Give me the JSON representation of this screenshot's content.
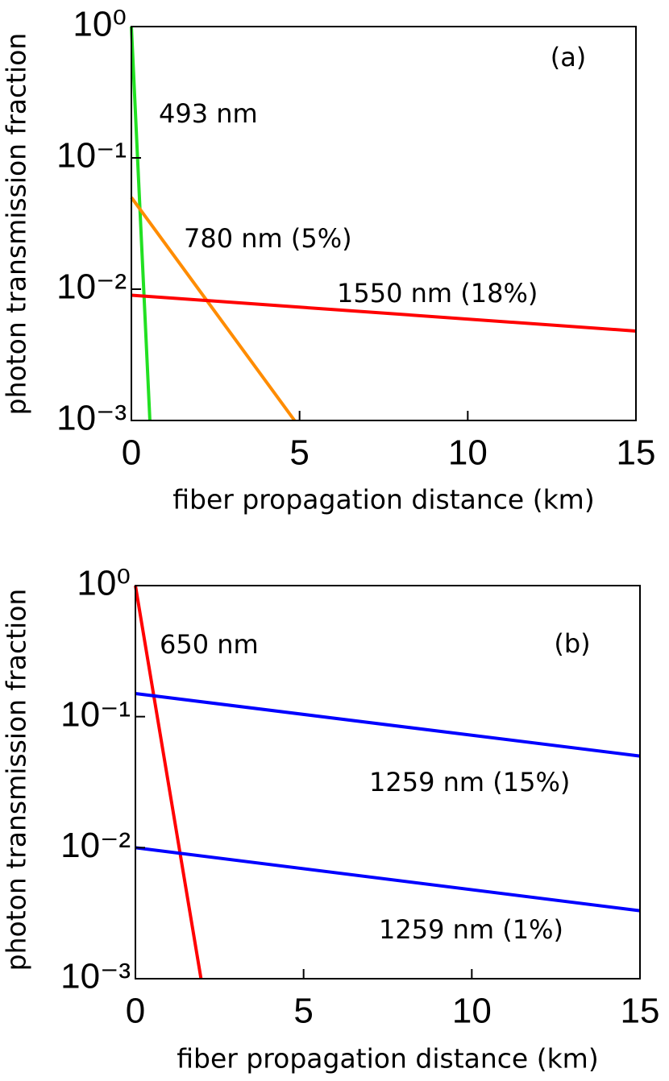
{
  "chart_data": [
    {
      "type": "line",
      "label": "(a)",
      "xlabel": "fiber propagation distance (km)",
      "ylabel": "photon transmission fraction",
      "log_y": true,
      "xlim": [
        0,
        15
      ],
      "ylim": [
        0.001,
        1
      ],
      "xticks": [
        0,
        5,
        10,
        15
      ],
      "yticks": [
        {
          "value": 1,
          "label": "10⁰"
        },
        {
          "value": 0.1,
          "label": "10⁻¹"
        },
        {
          "value": 0.01,
          "label": "10⁻²"
        },
        {
          "value": 0.001,
          "label": "10⁻³"
        }
      ],
      "series": [
        {
          "name": "493 nm",
          "color": "#22e022",
          "x": [
            0,
            0.55
          ],
          "values": [
            1,
            0.001
          ]
        },
        {
          "name": "780 nm (5%)",
          "color": "#ff8c00",
          "x": [
            0,
            4.85
          ],
          "values": [
            0.05,
            0.001
          ]
        },
        {
          "name": "1550 nm (18%)",
          "color": "#ff0000",
          "x": [
            0,
            15
          ],
          "values": [
            0.009,
            0.0048
          ]
        }
      ]
    },
    {
      "type": "line",
      "label": "(b)",
      "xlabel": "fiber propagation distance (km)",
      "ylabel": "photon transmission fraction",
      "log_y": true,
      "xlim": [
        0,
        15
      ],
      "ylim": [
        0.001,
        1
      ],
      "xticks": [
        0,
        5,
        10,
        15
      ],
      "yticks": [
        {
          "value": 1,
          "label": "10⁰"
        },
        {
          "value": 0.1,
          "label": "10⁻¹"
        },
        {
          "value": 0.01,
          "label": "10⁻²"
        },
        {
          "value": 0.001,
          "label": "10⁻³"
        }
      ],
      "series": [
        {
          "name": "650 nm",
          "color": "#ff0000",
          "x": [
            0,
            1.95
          ],
          "values": [
            1,
            0.001
          ]
        },
        {
          "name": "1259 nm (15%)",
          "color": "#0000ff",
          "x": [
            0,
            15
          ],
          "values": [
            0.15,
            0.05
          ]
        },
        {
          "name": "1259 nm (1%)",
          "color": "#0000ff",
          "x": [
            0,
            15
          ],
          "values": [
            0.01,
            0.0033
          ]
        }
      ]
    }
  ]
}
